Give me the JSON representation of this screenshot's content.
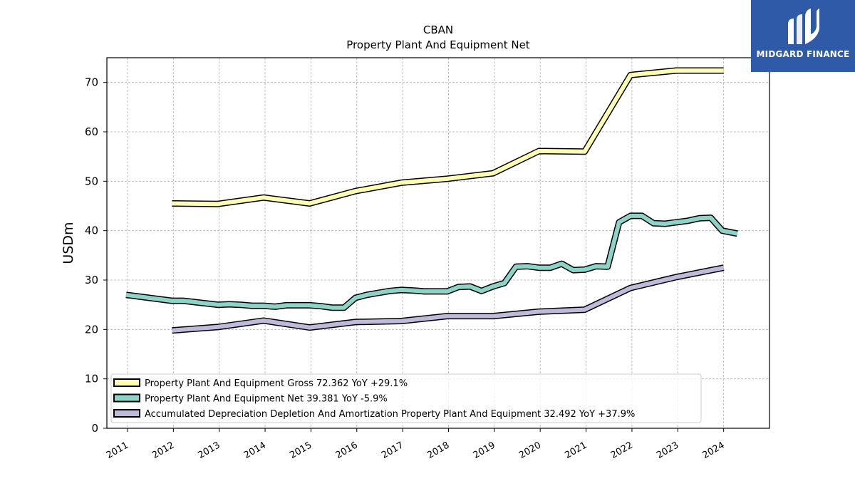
{
  "chart_data": {
    "type": "line",
    "title": "CBAN",
    "subtitle": "Property Plant And Equipment Net",
    "xlabel": "",
    "ylabel": "USDm",
    "ylim": [
      0,
      75
    ],
    "xlim": [
      2010.55,
      2025.0
    ],
    "yticks": [
      0,
      10,
      20,
      30,
      40,
      50,
      60,
      70
    ],
    "xticks": [
      "2011",
      "2012",
      "2013",
      "2014",
      "2015",
      "2016",
      "2017",
      "2018",
      "2019",
      "2020",
      "2021",
      "2022",
      "2023",
      "2024"
    ],
    "grid": true,
    "legend_position": "lower-left",
    "series": [
      {
        "name": "Property Plant And Equipment Gross",
        "legend": "Property Plant And Equipment Gross  72.362 YoY +29.1%",
        "color": "#ffffb3",
        "x": [
          2011.97,
          2012.97,
          2013.97,
          2014.97,
          2015.97,
          2016.97,
          2017.97,
          2018.97,
          2019.97,
          2020.97,
          2021.97,
          2022.97,
          2024.0
        ],
        "y": [
          45.5,
          45.4,
          46.7,
          45.5,
          48.0,
          49.7,
          50.5,
          51.6,
          56.1,
          56.0,
          71.5,
          72.4,
          72.4
        ]
      },
      {
        "name": "Property Plant And Equipment Net",
        "legend": "Property Plant And Equipment Net  39.381 YoY -5.9%",
        "color": "#8dd3c7",
        "x": [
          2010.97,
          2011.97,
          2012.22,
          2012.97,
          2013.22,
          2013.47,
          2013.72,
          2013.97,
          2014.22,
          2014.47,
          2014.72,
          2014.97,
          2015.22,
          2015.47,
          2015.72,
          2015.97,
          2016.22,
          2016.47,
          2016.72,
          2016.97,
          2017.22,
          2017.47,
          2017.72,
          2017.97,
          2018.22,
          2018.47,
          2018.72,
          2018.97,
          2019.22,
          2019.47,
          2019.72,
          2019.97,
          2020.22,
          2020.47,
          2020.72,
          2020.97,
          2021.22,
          2021.47,
          2021.72,
          2021.97,
          2022.22,
          2022.47,
          2022.72,
          2022.97,
          2023.22,
          2023.47,
          2023.72,
          2023.97,
          2024.3
        ],
        "y": [
          27.0,
          25.8,
          25.8,
          25.0,
          25.1,
          25.0,
          24.8,
          24.8,
          24.6,
          24.9,
          24.9,
          24.9,
          24.7,
          24.4,
          24.4,
          26.4,
          27.0,
          27.4,
          27.8,
          28.0,
          27.9,
          27.7,
          27.7,
          27.7,
          28.6,
          28.7,
          27.8,
          28.7,
          29.4,
          32.7,
          32.8,
          32.5,
          32.5,
          33.3,
          32.0,
          32.1,
          32.8,
          32.7,
          41.7,
          43.0,
          43.0,
          41.5,
          41.4,
          41.7,
          42.0,
          42.5,
          42.6,
          40.0,
          39.4
        ]
      },
      {
        "name": "Accumulated Depreciation Depletion And Amortization Property Plant And Equipment",
        "legend": "Accumulated Depreciation Depletion And Amortization Property Plant And Equipment  32.492 YoY +37.9%",
        "color": "#bebada",
        "x": [
          2011.97,
          2012.97,
          2013.97,
          2014.97,
          2015.97,
          2016.97,
          2017.97,
          2018.97,
          2019.97,
          2020.97,
          2021.97,
          2022.97,
          2024.0
        ],
        "y": [
          19.8,
          20.5,
          21.8,
          20.4,
          21.5,
          21.7,
          22.7,
          22.7,
          23.6,
          24.0,
          28.4,
          30.6,
          32.5
        ]
      }
    ]
  },
  "logo": {
    "text": "MIDGARD FINANCE",
    "background": "#2f5aa8"
  }
}
